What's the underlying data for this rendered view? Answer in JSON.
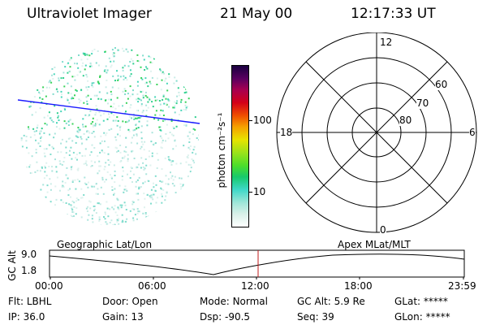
{
  "header": {
    "instrument": "Ultraviolet Imager",
    "date": "21 May 00",
    "time": "12:17:33 UT"
  },
  "colorbar": {
    "unit_label": "photon cm⁻²s⁻¹",
    "ticks": [
      "100",
      "10"
    ],
    "colors": [
      "#ffffff",
      "#d8f0e8",
      "#9ee6d8",
      "#3fd8c8",
      "#17c96b",
      "#4dde2a",
      "#9be21a",
      "#e7e300",
      "#f5a100",
      "#ef4f00",
      "#d40018",
      "#a80050",
      "#5a0060",
      "#1a0040"
    ]
  },
  "polar_grid": {
    "mlt_labels": {
      "top": "12",
      "left": "18",
      "right": "6",
      "bottom": "0"
    },
    "lat_labels": [
      "60",
      "70",
      "80"
    ]
  },
  "timeline": {
    "left_label": "Geographic Lat/Lon",
    "right_label": "Apex MLat/MLT",
    "axis_title": "GC Alt",
    "y_ticks": [
      "9.0",
      "1.8"
    ],
    "x_ticks": [
      "00:00",
      "06:00",
      "12:00",
      "18:00",
      "23:59"
    ]
  },
  "status": {
    "row1": [
      {
        "label": "Flt:",
        "value": "LBHL"
      },
      {
        "label": "Door:",
        "value": "Open"
      },
      {
        "label": "Mode:",
        "value": "Normal"
      },
      {
        "label": "GC Alt:",
        "value": "5.9 Re"
      },
      {
        "label": "GLat:",
        "value": "*****"
      }
    ],
    "row2": [
      {
        "label": "IP:",
        "value": "36.0"
      },
      {
        "label": "Gain:",
        "value": "13"
      },
      {
        "label": "Dsp:",
        "value": "-90.5"
      },
      {
        "label": "Seq:",
        "value": "39"
      },
      {
        "label": "GLon:",
        "value": "*****"
      }
    ]
  }
}
